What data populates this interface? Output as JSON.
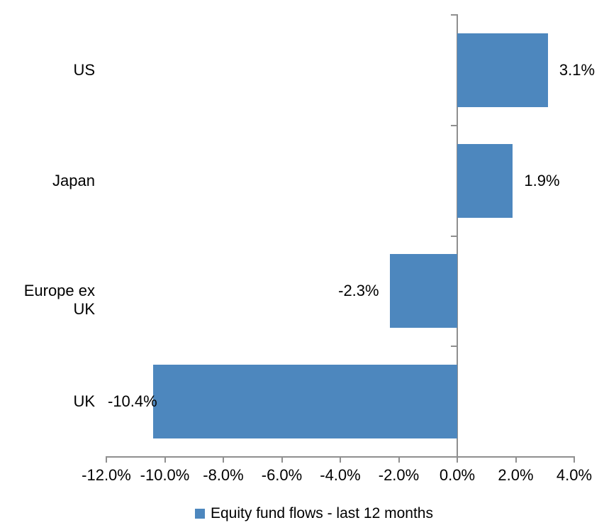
{
  "chart_data": {
    "type": "bar",
    "orientation": "horizontal",
    "categories": [
      "US",
      "Japan",
      "Europe ex UK",
      "UK"
    ],
    "values": [
      3.1,
      1.9,
      -2.3,
      -10.4
    ],
    "value_labels": [
      "3.1%",
      "1.9%",
      "-2.3%",
      "-10.4%"
    ],
    "series": [
      {
        "name": "Equity fund flows - last 12 months",
        "values": [
          3.1,
          1.9,
          -2.3,
          -10.4
        ]
      }
    ],
    "legend_label": "Equity fund flows - last 12 months",
    "legend_position": "bottom-center",
    "xlim": [
      -12,
      4
    ],
    "x_tick_values": [
      -12,
      -10,
      -8,
      -6,
      -4,
      -2,
      0,
      2,
      4
    ],
    "x_tick_labels": [
      "-12.0%",
      "-10.0%",
      "-8.0%",
      "-6.0%",
      "-4.0%",
      "-2.0%",
      "0.0%",
      "2.0%",
      "4.0%"
    ],
    "grid": false,
    "title": "",
    "xlabel": "",
    "ylabel": "",
    "bar_color": "#4d87be",
    "axis_color": "#8f8f8f",
    "text_color": "#000000",
    "background_color": "#ffffff"
  }
}
